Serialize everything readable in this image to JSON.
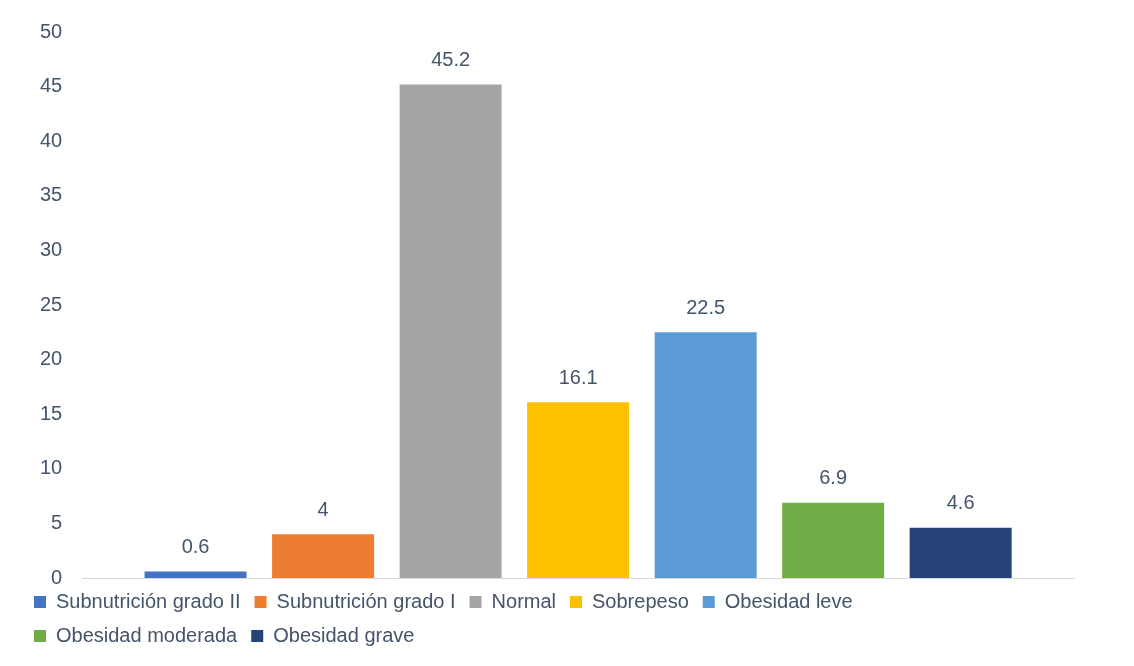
{
  "chart_data": {
    "type": "bar",
    "categories": [
      null
    ],
    "series": [
      {
        "name": "Subnutrición grado II",
        "color": "#4472c4",
        "values": [
          0.6
        ]
      },
      {
        "name": "Subnutrición grado I",
        "color": "#ed7d31",
        "values": [
          4
        ]
      },
      {
        "name": "Normal",
        "color": "#a5a5a5",
        "values": [
          45.2
        ]
      },
      {
        "name": "Sobrepeso",
        "color": "#ffc000",
        "values": [
          16.1
        ]
      },
      {
        "name": "Obesidad leve",
        "color": "#5b9bd5",
        "values": [
          22.5
        ]
      },
      {
        "name": "Obesidad moderada",
        "color": "#70ad47",
        "values": [
          6.9
        ]
      },
      {
        "name": "Obesidad grave",
        "color": "#264478",
        "values": [
          4.6
        ]
      }
    ],
    "ylim": [
      0,
      50
    ],
    "yticks": [
      0,
      5,
      10,
      15,
      20,
      25,
      30,
      35,
      40,
      45,
      50
    ],
    "data_labels": true,
    "legend": "bottom",
    "grid": false
  }
}
